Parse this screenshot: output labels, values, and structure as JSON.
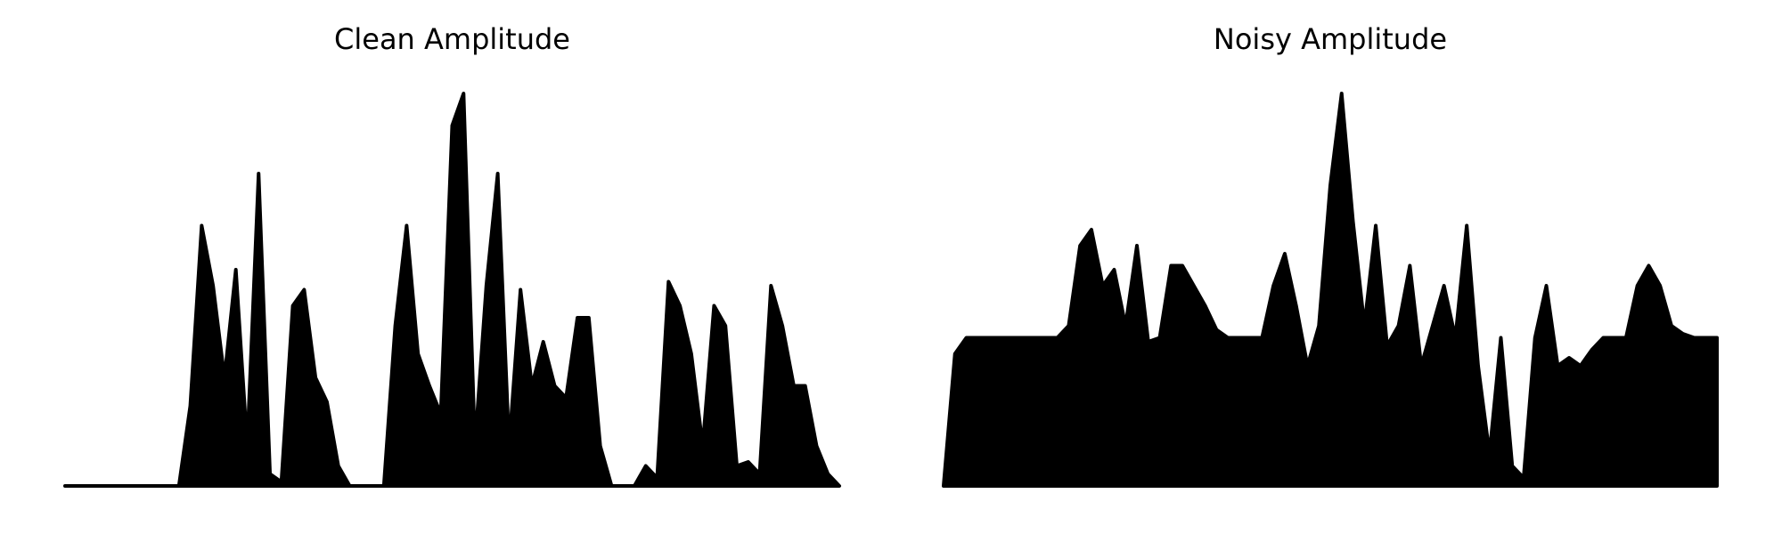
{
  "chart_data": [
    {
      "type": "area",
      "title": "Clean Amplitude",
      "color": "#000000",
      "ylim": [
        0,
        1
      ],
      "values": [
        0,
        0,
        0,
        0,
        0,
        0,
        0,
        0,
        0,
        0,
        0,
        0.2,
        0.65,
        0.5,
        0.27,
        0.54,
        0.1,
        0.78,
        0.03,
        0.01,
        0.45,
        0.49,
        0.27,
        0.21,
        0.05,
        0,
        0,
        0,
        0,
        0.4,
        0.65,
        0.33,
        0.25,
        0.18,
        0.9,
        0.98,
        0.1,
        0.5,
        0.78,
        0.1,
        0.49,
        0.25,
        0.36,
        0.25,
        0.22,
        0.42,
        0.42,
        0.1,
        0,
        0,
        0,
        0.05,
        0.02,
        0.51,
        0.45,
        0.33,
        0.1,
        0.45,
        0.4,
        0.05,
        0.06,
        0.03,
        0.5,
        0.4,
        0.25,
        0.25,
        0.1,
        0.03,
        0
      ]
    },
    {
      "type": "area",
      "title": "Noisy Amplitude",
      "color": "#000000",
      "ylim": [
        0,
        1
      ],
      "values": [
        0,
        0.33,
        0.37,
        0.37,
        0.37,
        0.37,
        0.37,
        0.37,
        0.37,
        0.37,
        0.37,
        0.4,
        0.6,
        0.64,
        0.5,
        0.54,
        0.4,
        0.6,
        0.36,
        0.37,
        0.55,
        0.55,
        0.5,
        0.45,
        0.39,
        0.37,
        0.37,
        0.37,
        0.37,
        0.5,
        0.58,
        0.45,
        0.3,
        0.4,
        0.75,
        0.98,
        0.66,
        0.4,
        0.65,
        0.35,
        0.4,
        0.55,
        0.3,
        0.4,
        0.5,
        0.37,
        0.65,
        0.3,
        0.08,
        0.37,
        0.05,
        0.02,
        0.37,
        0.5,
        0.3,
        0.32,
        0.3,
        0.34,
        0.37,
        0.37,
        0.37,
        0.5,
        0.55,
        0.5,
        0.4,
        0.38,
        0.37,
        0.37,
        0.37
      ]
    }
  ]
}
